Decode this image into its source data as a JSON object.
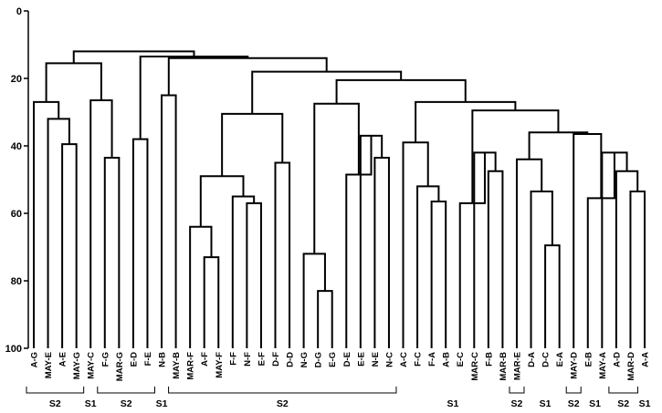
{
  "chart_data": {
    "type": "dendrogram",
    "y_axis": {
      "ylim": [
        0,
        100
      ],
      "ticks": [
        0,
        20,
        40,
        60,
        80,
        100
      ],
      "inverted": true
    },
    "leaves": [
      "A-G",
      "MAY-E",
      "A-E",
      "MAY-G",
      "MAY-C",
      "F-G",
      "MAR-G",
      "E-D",
      "F-E",
      "N-B",
      "MAY-B",
      "MAR-F",
      "A-F",
      "MAY-F",
      "F-F",
      "N-F",
      "E-F",
      "D-F",
      "D-D",
      "N-G",
      "D-G",
      "E-G",
      "D-E",
      "E-E",
      "N-E",
      "N-C",
      "A-C",
      "F-C",
      "F-A",
      "A-B",
      "E-C",
      "MAR-C",
      "F-B",
      "MAR-B",
      "MAR-E",
      "D-A",
      "D-C",
      "E-A",
      "MAY-D",
      "E-B",
      "MAY-A",
      "A-D",
      "MAR-D",
      "A-A"
    ],
    "merges": [
      {
        "a": "L2",
        "b": "L3",
        "h": 39.5
      },
      {
        "a": "L1",
        "b": "M0",
        "h": 32
      },
      {
        "a": "L0",
        "b": "M1",
        "h": 27
      },
      {
        "a": "L5",
        "b": "L6",
        "h": 43.5
      },
      {
        "a": "L4",
        "b": "M3",
        "h": 26.5
      },
      {
        "a": "M2",
        "b": "M4",
        "h": 15.5
      },
      {
        "a": "L7",
        "b": "L8",
        "h": 38
      },
      {
        "a": "L9",
        "b": "L10",
        "h": 25
      },
      {
        "a": "L12",
        "b": "L13",
        "h": 73
      },
      {
        "a": "L11",
        "b": "M8",
        "h": 64
      },
      {
        "a": "L15",
        "b": "L16",
        "h": 57
      },
      {
        "a": "L14",
        "b": "M10",
        "h": 55
      },
      {
        "a": "M9",
        "b": "M11",
        "h": 49
      },
      {
        "a": "L17",
        "b": "L18",
        "h": 45
      },
      {
        "a": "M12",
        "b": "M13",
        "h": 30.5
      },
      {
        "a": "L20",
        "b": "L21",
        "h": 83
      },
      {
        "a": "L19",
        "b": "M15",
        "h": 72
      },
      {
        "a": "L24",
        "b": "L25",
        "h": 43.5
      },
      {
        "a": "L23",
        "b": "M17",
        "h": 37
      },
      {
        "a": "L22",
        "b": "M18",
        "h": 48.5
      },
      {
        "a": "M16",
        "b": "M19",
        "h": 27.5
      },
      {
        "a": "L28",
        "b": "L29",
        "h": 56.5
      },
      {
        "a": "L27",
        "b": "M21",
        "h": 52
      },
      {
        "a": "L26",
        "b": "M22",
        "h": 39
      },
      {
        "a": "L32",
        "b": "L33",
        "h": 47.5
      },
      {
        "a": "L31",
        "b": "M24",
        "h": 42
      },
      {
        "a": "L30",
        "b": "M25",
        "h": 57
      },
      {
        "a": "L36",
        "b": "L37",
        "h": 69.5
      },
      {
        "a": "L35",
        "b": "M27",
        "h": 53.5
      },
      {
        "a": "L34",
        "b": "M28",
        "h": 44
      },
      {
        "a": "L42",
        "b": "L43",
        "h": 53.5
      },
      {
        "a": "L41",
        "b": "M30",
        "h": 47.5
      },
      {
        "a": "L40",
        "b": "M31",
        "h": 42
      },
      {
        "a": "L39",
        "b": "M32",
        "h": 55.5
      },
      {
        "a": "L38",
        "b": "M33",
        "h": 36.5
      },
      {
        "a": "M29",
        "b": "M34",
        "h": 36
      },
      {
        "a": "M26",
        "b": "M35",
        "h": 29.5
      },
      {
        "a": "M23",
        "b": "M36",
        "h": 27
      },
      {
        "a": "M20",
        "b": "M37",
        "h": 20.5
      },
      {
        "a": "M14",
        "b": "M38",
        "h": 18
      },
      {
        "a": "M7",
        "b": "M39",
        "h": 14
      },
      {
        "a": "M6",
        "b": "M40",
        "h": 13.5
      },
      {
        "a": "M5",
        "b": "M41",
        "h": 12
      }
    ],
    "groups": [
      {
        "label": "S2",
        "start": 0,
        "end": 3,
        "bracket": true
      },
      {
        "label": "S1",
        "start": 4,
        "end": 4,
        "bracket": false
      },
      {
        "label": "S2",
        "start": 5,
        "end": 8,
        "bracket": true
      },
      {
        "label": "S1",
        "start": 9,
        "end": 9,
        "bracket": false
      },
      {
        "label": "S2",
        "start": 10,
        "end": 25,
        "bracket": true
      },
      {
        "label": "S1",
        "start": 26,
        "end": 33,
        "bracket": false
      },
      {
        "label": "S2",
        "start": 34,
        "end": 34,
        "bracket": true
      },
      {
        "label": "S1",
        "start": 35,
        "end": 37,
        "bracket": false
      },
      {
        "label": "S2",
        "start": 38,
        "end": 38,
        "bracket": true
      },
      {
        "label": "S1",
        "start": 39,
        "end": 40,
        "bracket": false
      },
      {
        "label": "S2",
        "start": 41,
        "end": 42,
        "bracket": true
      },
      {
        "label": "S1",
        "start": 43,
        "end": 43,
        "bracket": false
      }
    ]
  }
}
